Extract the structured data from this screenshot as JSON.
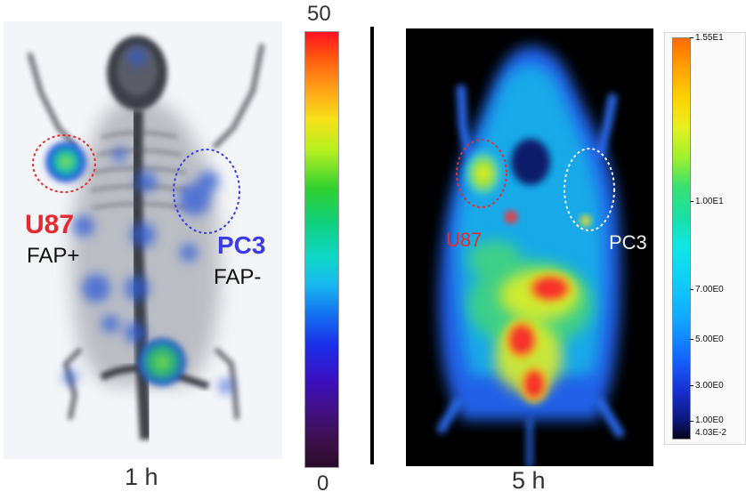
{
  "left_panel": {
    "tumor_left": {
      "name": "U87",
      "marker": "FAP+"
    },
    "tumor_right": {
      "name": "PC3",
      "marker": "FAP-"
    },
    "time": "1 h"
  },
  "left_scale": {
    "max": "50",
    "min": "0"
  },
  "right_panel": {
    "tumor_left": "U87",
    "tumor_right": "PC3",
    "time": "5 h"
  },
  "legend": {
    "labels": [
      "1.55E1",
      "1.00E1",
      "7.00E0",
      "5.00E0",
      "3.00E0",
      "1.00E0",
      "4.03E-2"
    ]
  },
  "colors": {
    "u87_label": "#e6292c",
    "pc3_label_pet": "#3a3ce8",
    "pc3_label_optical": "#f2f2f2"
  }
}
